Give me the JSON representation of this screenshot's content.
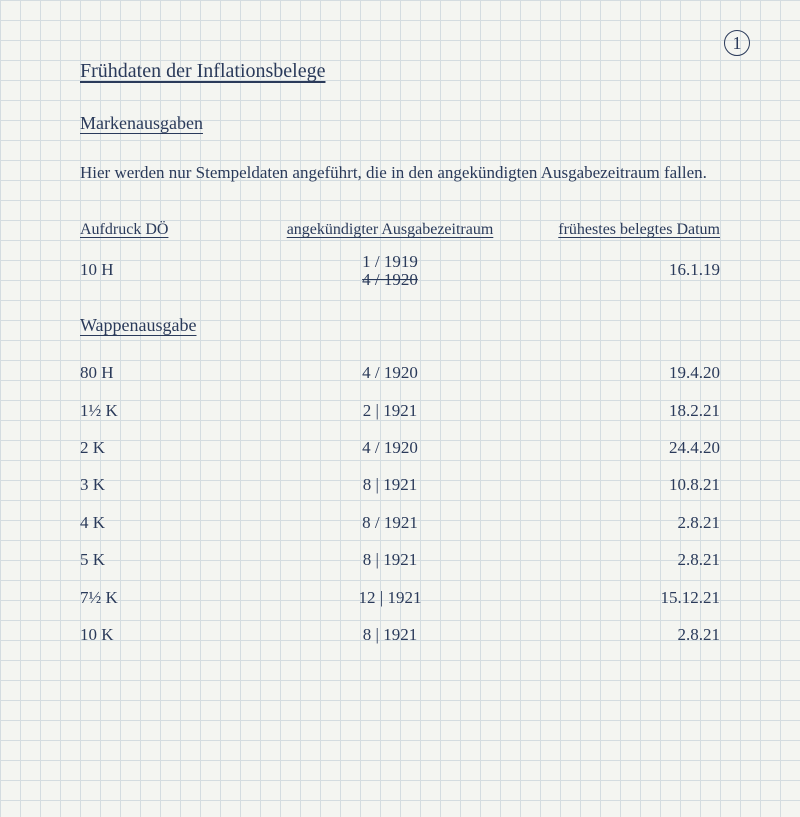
{
  "page_number": "1",
  "title": "Frühdaten der Inflationsbelege",
  "subtitle": "Markenausgaben",
  "paragraph": "Hier werden nur Stempeldaten angeführt, die in den angekündigten Ausgabezeitraum fallen.",
  "columns": {
    "c1": "Aufdruck DÖ",
    "c2": "angekündigter Ausgabezeitraum",
    "c3": "frühestes belegtes Datum"
  },
  "aufdruck_row": {
    "denom": "10 H",
    "period_top": "1 / 1919",
    "period_strike": "4 / 1920",
    "date": "16.1.19"
  },
  "section2": "Wappenausgabe",
  "rows": [
    {
      "denom": "80 H",
      "period": "4 / 1920",
      "date": "19.4.20"
    },
    {
      "denom": "1½ K",
      "period": "2 | 1921",
      "date": "18.2.21"
    },
    {
      "denom": "2 K",
      "period": "4 / 1920",
      "date": "24.4.20"
    },
    {
      "denom": "3 K",
      "period": "8 | 1921",
      "date": "10.8.21"
    },
    {
      "denom": "4 K",
      "period": "8 / 1921",
      "date": "2.8.21"
    },
    {
      "denom": "5 K",
      "period": "8 | 1921",
      "date": "2.8.21"
    },
    {
      "denom": "7½ K",
      "period": "12 | 1921",
      "date": "15.12.21"
    },
    {
      "denom": "10 K",
      "period": "8 | 1921",
      "date": "2.8.21"
    }
  ],
  "ink_color": "#2a3a5a",
  "paper_color": "#f4f5f1",
  "grid_color": "#d4dce0"
}
